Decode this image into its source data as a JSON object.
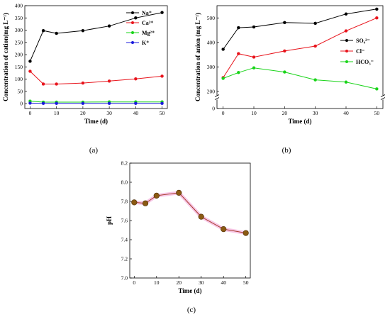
{
  "chart_data": [
    {
      "type": "line",
      "caption": "(a)",
      "xlabel": "Time (d)",
      "ylabel": "Concentration of cation(mg L⁻¹)",
      "x": [
        0,
        5,
        10,
        20,
        30,
        40,
        50
      ],
      "xticks": [
        "0",
        "10",
        "20",
        "30",
        "40",
        "50"
      ],
      "xlim": [
        -2,
        52
      ],
      "ylim": [
        -20,
        400
      ],
      "yticks": [
        "0",
        "50",
        "100",
        "150",
        "200",
        "250",
        "300",
        "350",
        "400"
      ],
      "legend_position": "top-right",
      "series": [
        {
          "name": "Na⁺",
          "color": "#000000",
          "values": [
            173,
            298,
            287,
            298,
            317,
            350,
            372
          ]
        },
        {
          "name": "Ca²⁺",
          "color": "#e8141c",
          "values": [
            132,
            80,
            80,
            84,
            92,
            101,
            112
          ]
        },
        {
          "name": "Mg²⁺",
          "color": "#19d419",
          "values": [
            10,
            6,
            6,
            6,
            7,
            7,
            7
          ]
        },
        {
          "name": "K⁺",
          "color": "#1a1adc",
          "values": [
            2,
            1,
            1,
            1,
            1,
            1,
            1
          ]
        }
      ]
    },
    {
      "type": "line",
      "caption": "(b)",
      "xlabel": "Time (d)",
      "ylabel": "Concentration of anion (mg L⁻¹)",
      "x": [
        0,
        5,
        10,
        20,
        30,
        40,
        50
      ],
      "xticks": [
        "0",
        "10",
        "20",
        "30",
        "40",
        "50"
      ],
      "xlim": [
        -2,
        52
      ],
      "ylim": [
        130,
        550
      ],
      "axis_break": true,
      "yticks": [
        "0",
        "200",
        "300",
        "400",
        "500"
      ],
      "legend_position": "right",
      "series": [
        {
          "name": "SO₄²⁻",
          "color": "#000000",
          "values": [
            372,
            460,
            463,
            481,
            478,
            516,
            536
          ]
        },
        {
          "name": "Cl⁻",
          "color": "#e8141c",
          "values": [
            256,
            354,
            340,
            365,
            385,
            447,
            500
          ]
        },
        {
          "name": "HCO₃⁻",
          "color": "#19d419",
          "values": [
            253,
            277,
            296,
            279,
            247,
            238,
            210
          ]
        }
      ]
    },
    {
      "type": "line",
      "caption": "(c)",
      "xlabel": "Time (d)",
      "ylabel": "pH",
      "x": [
        0,
        5,
        10,
        20,
        30,
        40,
        50
      ],
      "xticks": [
        "0",
        "10",
        "20",
        "30",
        "40",
        "50"
      ],
      "xlim": [
        -2,
        52
      ],
      "ylim": [
        7.0,
        8.2
      ],
      "yticks": [
        "7.0",
        "7.2",
        "7.4",
        "7.6",
        "7.8",
        "8.0",
        "8.2"
      ],
      "series": [
        {
          "color": "#8b5a12",
          "values": [
            7.79,
            7.78,
            7.86,
            7.89,
            7.64,
            7.51,
            7.47
          ]
        }
      ]
    }
  ]
}
